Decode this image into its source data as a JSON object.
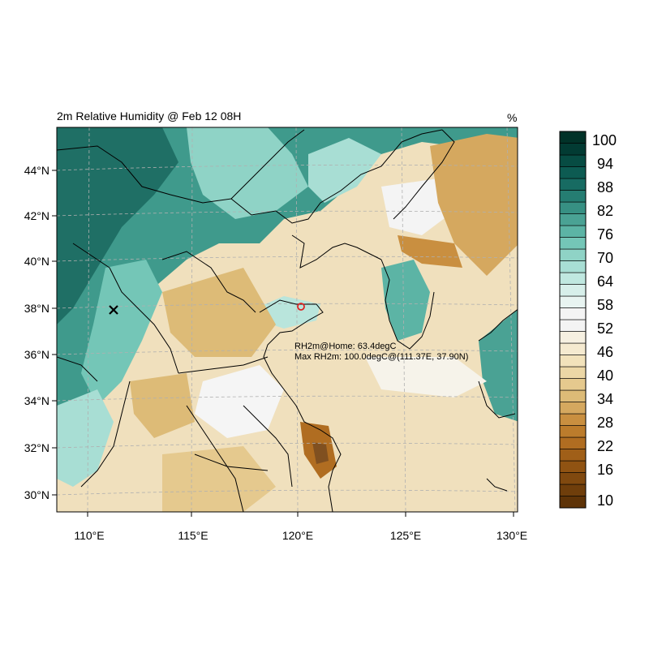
{
  "map": {
    "title": "2m Relative Humidity @ Feb 12 08H",
    "units": "%",
    "lon_ticks": [
      "110°E",
      "115°E",
      "120°E",
      "125°E",
      "130°E"
    ],
    "lat_ticks": [
      "44°N",
      "42°N",
      "40°N",
      "38°N",
      "36°N",
      "34°N",
      "32°N",
      "30°N"
    ],
    "annotations": {
      "home_line": "RH2m@Home: 63.4degC",
      "max_line": "Max RH2m: 100.0degC@(111.37E, 37.90N)"
    },
    "markers": [
      {
        "name": "home-marker",
        "symbol": "circle",
        "color": "#dd2222"
      },
      {
        "name": "max-marker",
        "symbol": "x",
        "color": "#000000"
      }
    ]
  },
  "colorbar": {
    "labels": [
      "100",
      "94",
      "88",
      "82",
      "76",
      "70",
      "64",
      "58",
      "52",
      "46",
      "40",
      "34",
      "28",
      "22",
      "16",
      "10"
    ],
    "colors": [
      "#5e3307",
      "#6f3e0b",
      "#80490f",
      "#905312",
      "#a05f18",
      "#b06d21",
      "#bc7c2c",
      "#c98f40",
      "#d5a85f",
      "#ddbb77",
      "#e5c98e",
      "#ecd7a6",
      "#f2e2bb",
      "#f5ead0",
      "#f6f0e1",
      "#f3f3f3",
      "#f4f4f4",
      "#e8f4f1",
      "#d7efea",
      "#c0e8e0",
      "#a8ded4",
      "#8fd3c6",
      "#74c6b7",
      "#5cb4a5",
      "#4aa294",
      "#379083",
      "#257d72",
      "#176b62",
      "#0d5b52",
      "#074c43",
      "#023b33",
      "#013228"
    ]
  }
}
